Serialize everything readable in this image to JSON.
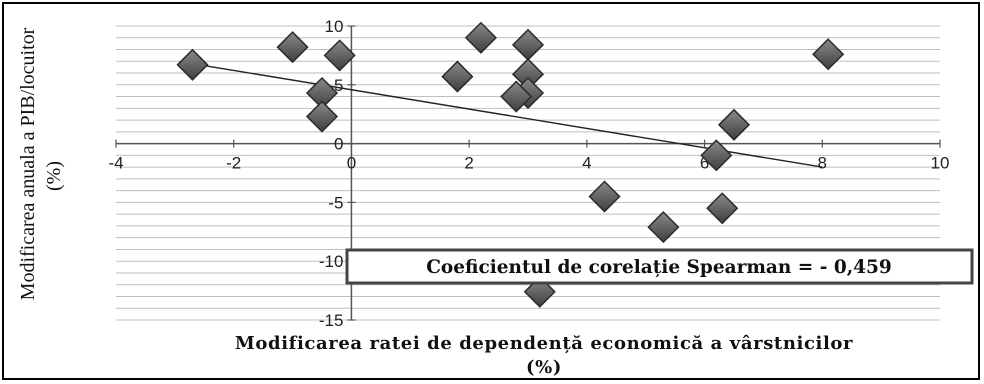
{
  "chart_data": {
    "type": "scatter",
    "ylabel_line1": "Modificarea anuala a PIB/locuitor",
    "ylabel_line2": "(%)",
    "xlabel_line1": "Modificarea ratei de dependență economică a vârstnicilor",
    "xlabel_line2": "(%)",
    "xlim": [
      -4,
      10
    ],
    "ylim": [
      -15,
      10
    ],
    "x_ticks": [
      "-4",
      "-2",
      "0",
      "2",
      "4",
      "6",
      "8",
      "10"
    ],
    "y_ticks": [
      "10",
      "5",
      "0",
      "-5",
      "-10",
      "-15"
    ],
    "grid": "horizontal",
    "points": [
      {
        "x": -2.7,
        "y": 6.7
      },
      {
        "x": -1.0,
        "y": 8.2
      },
      {
        "x": -0.2,
        "y": 7.5
      },
      {
        "x": -0.5,
        "y": 4.3
      },
      {
        "x": -0.5,
        "y": 2.3
      },
      {
        "x": 1.8,
        "y": 5.7
      },
      {
        "x": 2.2,
        "y": 9.0
      },
      {
        "x": 3.0,
        "y": 8.4
      },
      {
        "x": 3.0,
        "y": 5.9
      },
      {
        "x": 3.0,
        "y": 4.3
      },
      {
        "x": 2.8,
        "y": 4.0
      },
      {
        "x": 4.3,
        "y": -4.5
      },
      {
        "x": 5.3,
        "y": -7.1
      },
      {
        "x": 3.2,
        "y": -12.6
      },
      {
        "x": 6.3,
        "y": -5.5
      },
      {
        "x": 6.5,
        "y": 1.6
      },
      {
        "x": 6.2,
        "y": -1.0
      },
      {
        "x": 8.1,
        "y": 7.6
      }
    ],
    "trendline": [
      {
        "x": -2.7,
        "y": 6.8
      },
      {
        "x": 8.0,
        "y": -2.0
      }
    ],
    "annotation": "Coeficientul de corelație Spearman = - 0,459",
    "colors": {
      "marker": "#5a5a5a",
      "marker_edge": "#2b2b2b",
      "grid": "#bfbfbf",
      "axis": "#555555",
      "trendline": "#222222"
    }
  }
}
